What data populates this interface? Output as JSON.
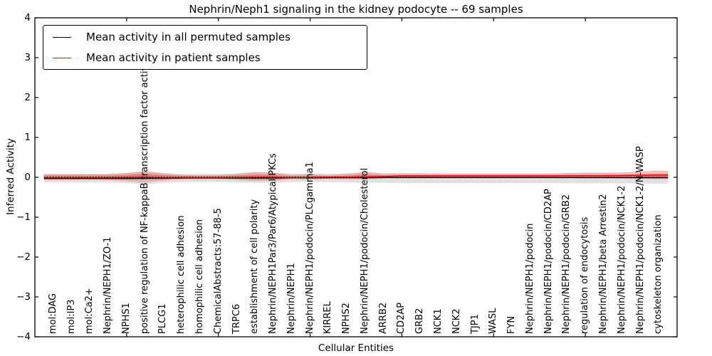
{
  "title": "Nephrin/Neph1 signaling in the kidney podocyte -- 69 samples",
  "axes": {
    "ylabel": "Inferred Activity",
    "xlabel": "Cellular Entities",
    "yticks": [
      "4",
      "3",
      "2",
      "1",
      "0",
      "−1",
      "−2",
      "−3",
      "−4"
    ]
  },
  "legend": {
    "entries": [
      {
        "label": "Mean activity in all permuted samples",
        "color": "#000000"
      },
      {
        "label": "Mean activity in patient samples",
        "color": "#ff0000"
      }
    ]
  },
  "chart_data": {
    "type": "area",
    "title": "Nephrin/Neph1 signaling in the kidney podocyte -- 69 samples",
    "xlabel": "Cellular Entities",
    "ylabel": "Inferred Activity",
    "ylim": [
      -4,
      4
    ],
    "grid": false,
    "legend_position": "upper left",
    "x_major_tick_indices": [
      4,
      9,
      14,
      19,
      24,
      29
    ],
    "categories": [
      "mol:DAG",
      "mol:IP3",
      "mol:Ca2+",
      "Nephrin/NEPH1/ZO-1",
      "NPHS1",
      "positive regulation of NF-kappaB transcription factor activity",
      "PLCG1",
      "heterophilic cell adhesion",
      "homophilic cell adhesion",
      "ChemicalAbstracts:57-88-5",
      "TRPC6",
      "establishment of cell polarity",
      "Nephrin/NEPH1Par3/Par6/Atypical PKCs",
      "Nephrin/NEPH1",
      "Nephrin/NEPH1/podocin/PLCgamma1",
      "KIRREL",
      "NPHS2",
      "Nephrin/NEPH1/podocin/Cholesterol",
      "ARRB2",
      "CD2AP",
      "GRB2",
      "NCK1",
      "NCK2",
      "TJP1",
      "WASL",
      "FYN",
      "Nephrin/NEPH1/podocin",
      "Nephrin/NEPH1/podocin/CD2AP",
      "Nephrin/NEPH1/podocin/GRB2",
      "regulation of endocytosis",
      "Nephrin/NEPH1/beta Arrestin2",
      "Nephrin/NEPH1/podocin/NCK1-2",
      "Nephrin/NEPH1/podocin/NCK1-2/N-WASP",
      "cytoskeleton organization"
    ],
    "series": [
      {
        "name": "Mean activity in all permuted samples",
        "values": [
          -0.03,
          -0.03,
          -0.03,
          -0.03,
          -0.03,
          -0.028,
          -0.025,
          -0.022,
          -0.02,
          -0.02,
          -0.02,
          -0.018,
          -0.018,
          -0.015,
          -0.015,
          -0.012,
          -0.01,
          -0.01,
          -0.008,
          -0.008,
          -0.008,
          -0.008,
          -0.008,
          -0.008,
          -0.008,
          -0.008,
          -0.008,
          -0.008,
          -0.008,
          -0.008,
          -0.008,
          -0.009,
          -0.01,
          -0.01
        ]
      },
      {
        "name": "Mean activity in patient samples",
        "values": [
          -0.012,
          -0.012,
          -0.012,
          -0.012,
          -0.005,
          0.002,
          -0.01,
          -0.012,
          -0.012,
          -0.012,
          -0.005,
          0,
          0,
          -0.01,
          -0.005,
          0,
          0,
          0.01,
          0.02,
          0.035,
          0.035,
          0.035,
          0.035,
          0.035,
          0.035,
          0.035,
          0.035,
          0.035,
          0.04,
          0.04,
          0.04,
          0.045,
          0.05,
          0.055
        ]
      },
      {
        "name": "permuted_band_upper",
        "values": [
          0.09,
          0.09,
          0.09,
          0.09,
          0.11,
          0.16,
          0.11,
          0.085,
          0.085,
          0.085,
          0.1,
          0.13,
          0.12,
          0.09,
          0.1,
          0.085,
          0.1,
          0.12,
          0.09,
          0.08,
          0.08,
          0.08,
          0.08,
          0.08,
          0.08,
          0.08,
          0.08,
          0.08,
          0.085,
          0.09,
          0.09,
          0.09,
          0.08,
          0.07
        ]
      },
      {
        "name": "permuted_band_lower",
        "values": [
          -0.13,
          -0.13,
          -0.13,
          -0.13,
          -0.15,
          -0.18,
          -0.14,
          -0.12,
          -0.12,
          -0.12,
          -0.13,
          -0.14,
          -0.14,
          -0.12,
          -0.12,
          -0.12,
          -0.13,
          -0.14,
          -0.14,
          -0.145,
          -0.145,
          -0.145,
          -0.145,
          -0.145,
          -0.145,
          -0.145,
          -0.145,
          -0.145,
          -0.15,
          -0.15,
          -0.15,
          -0.15,
          -0.155,
          -0.16
        ]
      },
      {
        "name": "patient_band_upper",
        "values": [
          0.07,
          0.07,
          0.065,
          0.07,
          0.1,
          0.14,
          0.09,
          0.055,
          0.05,
          0.05,
          0.075,
          0.125,
          0.11,
          0.05,
          0.07,
          0.05,
          0.08,
          0.125,
          0.09,
          0.095,
          0.095,
          0.09,
          0.09,
          0.09,
          0.09,
          0.09,
          0.09,
          0.09,
          0.1,
          0.11,
          0.11,
          0.11,
          0.14,
          0.16
        ]
      },
      {
        "name": "patient_band_lower",
        "values": [
          -0.055,
          -0.055,
          -0.05,
          -0.055,
          -0.09,
          -0.125,
          -0.07,
          -0.04,
          -0.035,
          -0.035,
          -0.06,
          -0.09,
          -0.08,
          -0.035,
          -0.05,
          -0.03,
          -0.04,
          -0.05,
          -0.02,
          -0.01,
          -0.01,
          -0.01,
          -0.01,
          -0.01,
          -0.01,
          -0.01,
          -0.01,
          -0.01,
          -0.015,
          -0.02,
          -0.02,
          -0.02,
          -0.03,
          -0.04
        ]
      },
      {
        "name": "patient_core_upper",
        "values": [
          0.045,
          0.045,
          0.04,
          0.045,
          0.06,
          0.09,
          0.055,
          0.035,
          0.03,
          0.03,
          0.045,
          0.07,
          0.06,
          0.03,
          0.04,
          0.03,
          0.045,
          0.07,
          0.05,
          0.055,
          0.055,
          0.05,
          0.05,
          0.05,
          0.05,
          0.05,
          0.05,
          0.05,
          0.055,
          0.06,
          0.06,
          0.06,
          0.08,
          0.09
        ]
      },
      {
        "name": "patient_core_lower",
        "values": [
          -0.027,
          -0.027,
          -0.025,
          -0.027,
          -0.05,
          -0.05,
          -0.04,
          -0.02,
          -0.02,
          -0.02,
          -0.035,
          -0.05,
          -0.045,
          -0.02,
          -0.03,
          -0.015,
          -0.02,
          -0.02,
          -0.005,
          0,
          0,
          0,
          0,
          0,
          0,
          0,
          0,
          0,
          -0.005,
          -0.005,
          -0.005,
          -0.005,
          -0.01,
          -0.015
        ]
      },
      {
        "name": "zero_reference",
        "values": [
          0,
          0
        ]
      }
    ],
    "colors": {
      "permuted_line": "#000000",
      "patient_line": "#ff0000",
      "permuted_band": "#c9c9c9",
      "patient_band": "#ee9595",
      "patient_core": "#dd4444",
      "zero_line": "#000000"
    }
  }
}
